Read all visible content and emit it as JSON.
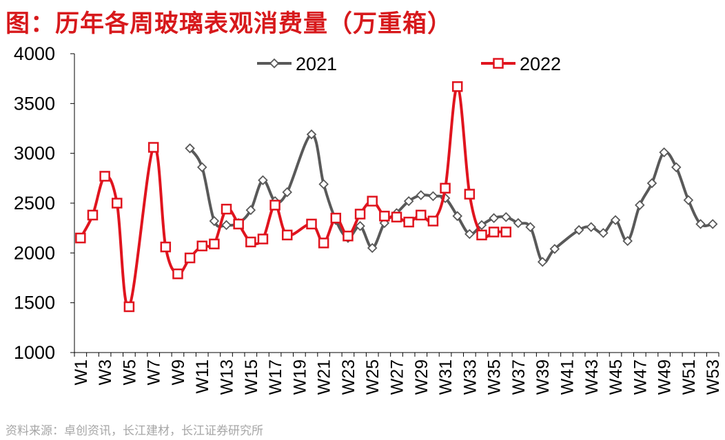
{
  "title": "图：历年各周玻璃表观消费量（万重箱）",
  "source": "资料来源：卓创资讯，长江建材，长江证券研究所",
  "chart_data": {
    "type": "line",
    "title": "图：历年各周玻璃表观消费量（万重箱）",
    "xlabel": "",
    "ylabel": "",
    "ylim": [
      1000,
      4000
    ],
    "yticks": [
      1000,
      1500,
      2000,
      2500,
      3000,
      3500,
      4000
    ],
    "xticks": [
      "W1",
      "W3",
      "W5",
      "W7",
      "W9",
      "W11",
      "W13",
      "W15",
      "W17",
      "W19",
      "W21",
      "W23",
      "W25",
      "W27",
      "W29",
      "W31",
      "W33",
      "W35",
      "W37",
      "W39",
      "W41",
      "W43",
      "W45",
      "W47",
      "W49",
      "W51",
      "W53"
    ],
    "grid": false,
    "legend_position": "top",
    "series": [
      {
        "name": "2021",
        "color": "#595959",
        "marker": "diamond",
        "x": [
          10,
          11,
          12,
          13,
          14,
          15,
          16,
          17,
          18,
          20,
          21,
          22,
          23,
          24,
          25,
          26,
          27,
          28,
          29,
          30,
          31,
          32,
          33,
          34,
          35,
          36,
          37,
          38,
          39,
          40,
          42,
          43,
          44,
          45,
          46,
          47,
          48,
          49,
          50,
          51,
          52,
          53
        ],
        "values": [
          3050,
          2860,
          2320,
          2280,
          2300,
          2430,
          2730,
          2520,
          2610,
          3190,
          2690,
          2330,
          2150,
          2270,
          2050,
          2300,
          2400,
          2520,
          2580,
          2570,
          2550,
          2370,
          2190,
          2280,
          2350,
          2360,
          2300,
          2260,
          1910,
          2040,
          2230,
          2260,
          2200,
          2330,
          2120,
          2480,
          2700,
          3010,
          2860,
          2530,
          2290,
          2290
        ]
      },
      {
        "name": "2022",
        "color": "#e0141e",
        "marker": "square",
        "x": [
          1,
          2,
          3,
          4,
          5,
          7,
          8,
          9,
          10,
          11,
          12,
          13,
          14,
          15,
          16,
          17,
          18,
          20,
          21,
          22,
          23,
          24,
          25,
          26,
          27,
          28,
          29,
          30,
          31,
          32,
          33,
          34,
          35,
          36
        ],
        "values": [
          2150,
          2380,
          2770,
          2500,
          1460,
          3060,
          2060,
          1790,
          1950,
          2070,
          2090,
          2440,
          2290,
          2110,
          2140,
          2480,
          2180,
          2290,
          2100,
          2350,
          2170,
          2390,
          2520,
          2370,
          2360,
          2310,
          2380,
          2320,
          2650,
          3670,
          2590,
          2180,
          2210,
          2210
        ]
      }
    ]
  }
}
